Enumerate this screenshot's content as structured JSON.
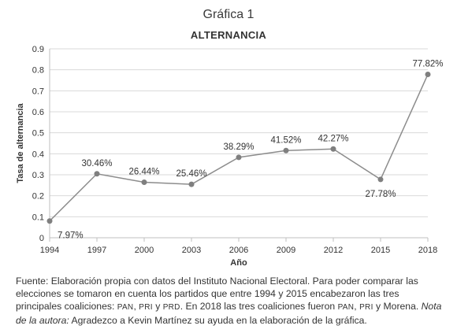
{
  "figure_label": "Gráfica 1",
  "chart_data": {
    "type": "line",
    "title": "ALTERNANCIA",
    "xlabel": "Año",
    "ylabel": "Tasa de alternancia",
    "x": [
      "1994",
      "1997",
      "2000",
      "2003",
      "2006",
      "2009",
      "2012",
      "2015",
      "2018"
    ],
    "y": [
      0.0797,
      0.3046,
      0.2644,
      0.2546,
      0.3829,
      0.4152,
      0.4227,
      0.2778,
      0.7782
    ],
    "data_labels": [
      "7.97%",
      "30.46%",
      "26.44%",
      "25.46%",
      "38.29%",
      "41.52%",
      "42.27%",
      "27.78%",
      "77.82%"
    ],
    "label_positions": [
      "below",
      "above",
      "above",
      "above",
      "above",
      "above",
      "above",
      "below",
      "above"
    ],
    "yticks": [
      "0",
      "0.1",
      "0.2",
      "0.3",
      "0.4",
      "0.5",
      "0.6",
      "0.7",
      "0.8",
      "0.9"
    ],
    "ylim": [
      0,
      0.9
    ],
    "grid": "horizontal",
    "legend": "none",
    "colors": {
      "line": "#8c8c8c",
      "marker": "#7f7f7f",
      "grid": "#d9d9d9",
      "axis": "#bfbfbf",
      "text": "#333333"
    }
  },
  "caption": {
    "p1": "Fuente: Elaboración propia con datos del Instituto Nacional Electoral. Para poder comparar las elecciones se tomaron en cuenta los partidos que entre 1994 y 2015 encabezaron las tres principales coaliciones: ",
    "pan": "PAN",
    "comma": ", ",
    "pri": "PRI",
    "y1": " y ",
    "prd": "PRD",
    "p2": ". En 2018 las tres coaliciones fueron ",
    "pan2": "PAN",
    "comma2": ", ",
    "pri2": "PRI",
    "p3": " y Morena. ",
    "note": "Nota de la autora:",
    "p4": " Agradezco a Kevin Martínez su ayuda en la elaboración de la gráfica."
  }
}
